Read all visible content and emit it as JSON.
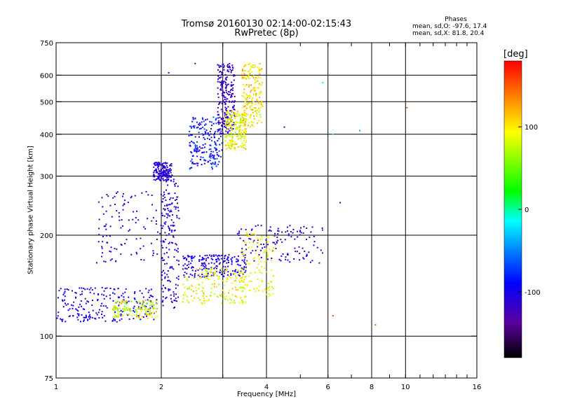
{
  "title": "Tromsø 20160130 02:14:00-02:15:43",
  "subtitle": "RwPretec (8p)",
  "phases": {
    "title": "Phases",
    "o_label": "mean, sd,O:",
    "o_values": "-97.6, 17.4",
    "x_label": "mean, sd,X:",
    "x_values": "81.8, 20.4"
  },
  "colorbar": {
    "label": "[deg]",
    "min": -180,
    "max": 180,
    "tick_values": [
      100,
      0,
      -100
    ],
    "tick_labels": [
      "100",
      "0",
      "-100"
    ]
  },
  "chart_data": {
    "type": "scatter",
    "title": "Tromsø 20160130 02:14:00-02:15:43",
    "subtitle": "RwPretec (8p)",
    "xlabel": "Frequency [MHz]",
    "ylabel": "Stationary phase Virtual Height [km]",
    "x_scale": "log",
    "y_scale": "log",
    "xlim": [
      1,
      16
    ],
    "ylim": [
      75,
      750
    ],
    "x_major_ticks": [
      1,
      2,
      4,
      8,
      16
    ],
    "x_grid_lines": [
      2,
      3,
      4,
      6,
      8,
      10
    ],
    "x_minor_ticks": [
      3,
      5,
      6,
      7,
      9,
      10,
      11,
      12,
      13,
      14,
      15
    ],
    "x_tick_labels": [
      "1",
      "2",
      "4",
      "6",
      "8",
      "10",
      "16"
    ],
    "x_tick_label_values": [
      1,
      2,
      4,
      6,
      8,
      10,
      16
    ],
    "y_tick_values": [
      75,
      100,
      200,
      300,
      400,
      500,
      600,
      750
    ],
    "y_tick_labels": [
      "75",
      "100",
      "200",
      "300",
      "400",
      "500",
      "600",
      "750"
    ],
    "y_grid_lines": [
      100,
      200,
      300,
      400,
      500,
      600
    ],
    "grid": true,
    "color_encoding": "phase (deg)",
    "clusters": [
      {
        "x": [
          1.0,
          1.95
        ],
        "y": [
          110,
          140
        ],
        "phase": [
          -120,
          -85
        ],
        "density": 1.0
      },
      {
        "x": [
          1.45,
          1.95
        ],
        "y": [
          113,
          128
        ],
        "phase": [
          40,
          130
        ],
        "density": 0.6
      },
      {
        "x": [
          1.3,
          2.0
        ],
        "y": [
          165,
          270
        ],
        "phase": [
          -130,
          -100
        ],
        "density": 0.5
      },
      {
        "x": [
          1.9,
          2.15
        ],
        "y": [
          290,
          330
        ],
        "phase": [
          -125,
          -95
        ],
        "density": 0.7
      },
      {
        "x": [
          2.0,
          2.25
        ],
        "y": [
          120,
          300
        ],
        "phase": [
          -130,
          -90
        ],
        "density": 0.8
      },
      {
        "x": [
          2.3,
          3.5
        ],
        "y": [
          150,
          175
        ],
        "phase": [
          -130,
          -85
        ],
        "density": 0.9
      },
      {
        "x": [
          2.3,
          3.5
        ],
        "y": [
          125,
          160
        ],
        "phase": [
          60,
          120
        ],
        "density": 0.8
      },
      {
        "x": [
          3.3,
          5.8
        ],
        "y": [
          165,
          215
        ],
        "phase": [
          -140,
          -90
        ],
        "density": 0.6
      },
      {
        "x": [
          3.4,
          4.2
        ],
        "y": [
          130,
          205
        ],
        "phase": [
          70,
          110
        ],
        "density": 0.5
      },
      {
        "x": [
          2.4,
          3.0
        ],
        "y": [
          315,
          450
        ],
        "phase": [
          -120,
          -60
        ],
        "density": 0.9
      },
      {
        "x": [
          2.9,
          3.25
        ],
        "y": [
          400,
          650
        ],
        "phase": [
          -130,
          -110
        ],
        "density": 1.0
      },
      {
        "x": [
          3.05,
          3.5
        ],
        "y": [
          360,
          470
        ],
        "phase": [
          60,
          120
        ],
        "density": 0.9
      },
      {
        "x": [
          3.4,
          3.9
        ],
        "y": [
          420,
          650
        ],
        "phase": [
          70,
          130
        ],
        "density": 0.9
      }
    ],
    "isolated_points": [
      {
        "x": 8.2,
        "y": 108,
        "phase": 150
      },
      {
        "x": 10.1,
        "y": 480,
        "phase": 150
      },
      {
        "x": 6.2,
        "y": 400,
        "phase": -20
      },
      {
        "x": 7.4,
        "y": 410,
        "phase": -40
      },
      {
        "x": 5.8,
        "y": 570,
        "phase": -20
      },
      {
        "x": 2.5,
        "y": 650,
        "phase": -120
      },
      {
        "x": 2.1,
        "y": 610,
        "phase": -110
      },
      {
        "x": 4.5,
        "y": 420,
        "phase": -110
      },
      {
        "x": 6.5,
        "y": 250,
        "phase": -120
      },
      {
        "x": 6.2,
        "y": 115,
        "phase": 160
      }
    ]
  }
}
